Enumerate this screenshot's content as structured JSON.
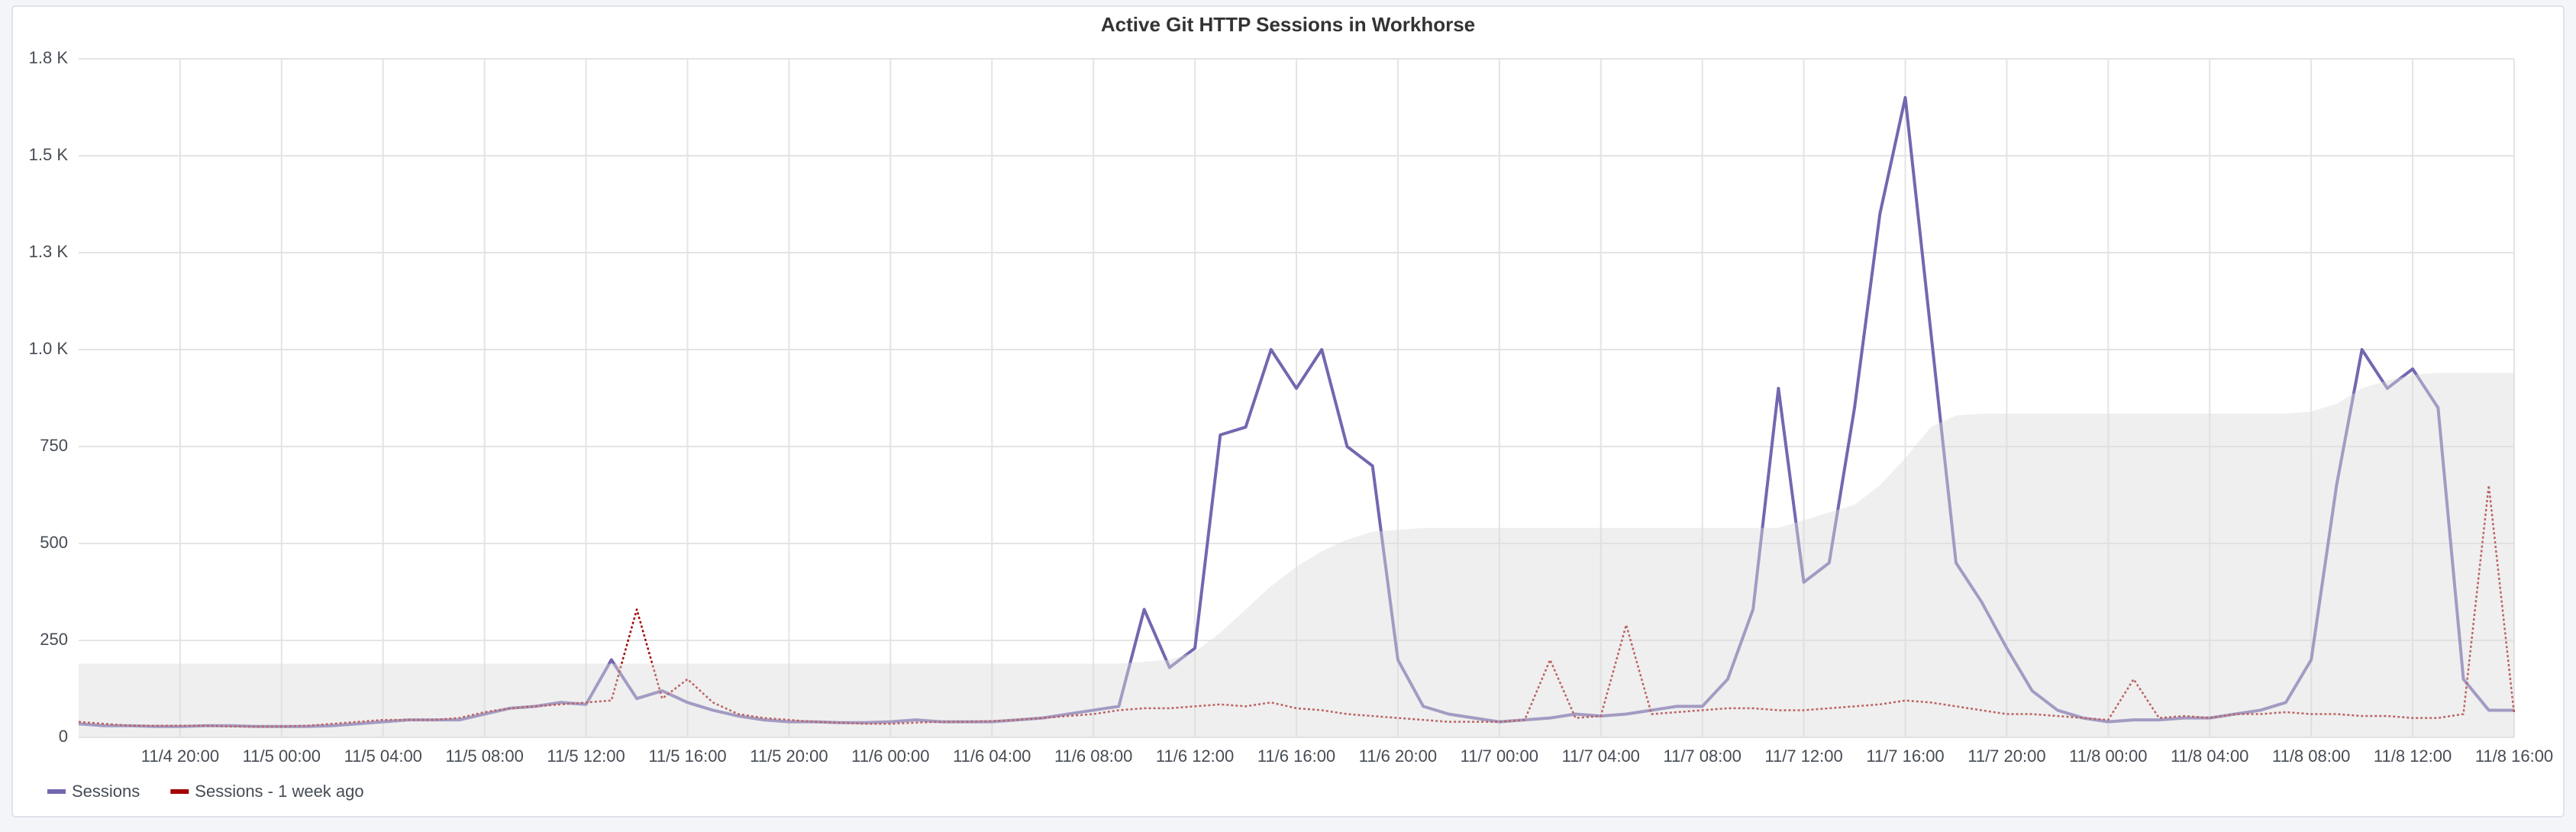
{
  "chart_data": {
    "type": "line",
    "title": "Active Git HTTP Sessions in Workhorse",
    "categories": [
      null,
      null,
      null,
      null,
      "11/4 20:00",
      null,
      null,
      null,
      "11/5 00:00",
      null,
      null,
      null,
      "11/5 04:00",
      null,
      null,
      null,
      "11/5 08:00",
      null,
      null,
      null,
      "11/5 12:00",
      null,
      null,
      null,
      "11/5 16:00",
      null,
      null,
      null,
      "11/5 20:00",
      null,
      null,
      null,
      "11/6 00:00",
      null,
      null,
      null,
      "11/6 04:00",
      null,
      null,
      null,
      "11/6 08:00",
      null,
      null,
      null,
      "11/6 12:00",
      null,
      null,
      null,
      "11/6 16:00",
      null,
      null,
      null,
      "11/6 20:00",
      null,
      null,
      null,
      "11/7 00:00",
      null,
      null,
      null,
      "11/7 04:00",
      null,
      null,
      null,
      "11/7 08:00",
      null,
      null,
      null,
      "11/7 12:00",
      null,
      null,
      null,
      "11/7 16:00",
      null,
      null,
      null,
      "11/7 20:00",
      null,
      null,
      null,
      "11/8 00:00",
      null,
      null,
      null,
      "11/8 04:00",
      null,
      null,
      null,
      "11/8 08:00",
      null,
      null,
      null,
      "11/8 12:00",
      null,
      null,
      null,
      "11/8 16:00"
    ],
    "series": [
      {
        "name": "Sessions",
        "color": "#7566b0",
        "values": [
          35,
          30,
          30,
          28,
          28,
          30,
          30,
          28,
          28,
          28,
          30,
          35,
          40,
          45,
          45,
          45,
          60,
          75,
          80,
          90,
          85,
          200,
          100,
          120,
          90,
          70,
          55,
          45,
          40,
          40,
          38,
          38,
          40,
          45,
          40,
          40,
          40,
          45,
          50,
          60,
          70,
          80,
          330,
          180,
          230,
          780,
          800,
          1000,
          900,
          1000,
          750,
          700,
          200,
          80,
          60,
          50,
          40,
          45,
          50,
          60,
          55,
          60,
          70,
          80,
          80,
          150,
          330,
          900,
          400,
          450,
          850,
          1350,
          1650,
          1050,
          450,
          350,
          230,
          120,
          70,
          50,
          40,
          45,
          45,
          50,
          50,
          60,
          70,
          90,
          200,
          650,
          1000,
          900,
          950,
          850,
          150,
          70,
          70
        ]
      },
      {
        "name": "Sessions - 1 week ago",
        "color": "#a30000",
        "dash": true,
        "values": [
          40,
          35,
          30,
          30,
          30,
          30,
          28,
          28,
          28,
          30,
          35,
          40,
          45,
          45,
          45,
          50,
          65,
          75,
          80,
          85,
          90,
          95,
          330,
          100,
          150,
          90,
          60,
          50,
          45,
          40,
          38,
          35,
          35,
          38,
          40,
          40,
          42,
          45,
          50,
          55,
          60,
          70,
          75,
          75,
          80,
          85,
          80,
          90,
          75,
          70,
          60,
          55,
          50,
          45,
          40,
          40,
          40,
          45,
          200,
          50,
          55,
          290,
          60,
          65,
          70,
          75,
          75,
          70,
          70,
          75,
          80,
          85,
          95,
          90,
          80,
          70,
          60,
          60,
          55,
          50,
          45,
          150,
          50,
          55,
          50,
          60,
          60,
          65,
          60,
          60,
          55,
          55,
          50,
          50,
          60,
          650,
          60
        ]
      },
      {
        "color": "#dcdcdc",
        "area": true,
        "values": [
          190,
          190,
          190,
          190,
          190,
          190,
          190,
          190,
          190,
          190,
          190,
          190,
          190,
          190,
          190,
          190,
          190,
          190,
          190,
          190,
          190,
          190,
          190,
          190,
          190,
          190,
          190,
          190,
          190,
          190,
          190,
          190,
          190,
          190,
          190,
          190,
          190,
          190,
          190,
          190,
          190,
          190,
          195,
          200,
          220,
          270,
          330,
          390,
          440,
          480,
          510,
          530,
          535,
          540,
          540,
          540,
          540,
          540,
          540,
          540,
          540,
          540,
          540,
          540,
          540,
          540,
          540,
          540,
          560,
          580,
          600,
          650,
          720,
          800,
          830,
          835,
          835,
          835,
          835,
          835,
          835,
          835,
          835,
          835,
          835,
          835,
          835,
          835,
          840,
          860,
          900,
          920,
          935,
          940,
          940,
          940,
          940
        ]
      }
    ],
    "ylim": [
      0,
      1750
    ],
    "yticks": [
      0,
      250,
      500,
      750,
      {
        "value": 1000,
        "label": "1.0 K"
      },
      {
        "value": 1250,
        "label": "1.3 K"
      },
      {
        "value": 1500,
        "label": "1.5 K"
      },
      {
        "value": 1750,
        "label": "1.8 K"
      }
    ],
    "grid": true
  }
}
